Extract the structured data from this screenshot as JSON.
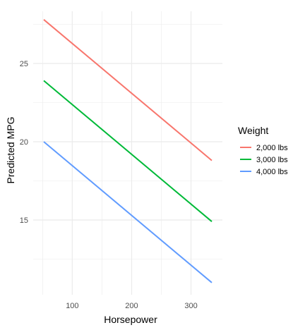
{
  "chart_data": {
    "type": "line",
    "title": "",
    "xlabel": "Horsepower",
    "ylabel": "Predicted MPG",
    "xlim": [
      52,
      335
    ],
    "ylim": [
      10.2,
      28.4
    ],
    "x_ticks": [
      100,
      200,
      300
    ],
    "x_tick_labels": [
      "100",
      "200",
      "300"
    ],
    "y_ticks": [
      15,
      20,
      25
    ],
    "y_tick_labels": [
      "15",
      "20",
      "25"
    ],
    "grid": true,
    "legend": {
      "title": "Weight",
      "placement": "right"
    },
    "series": [
      {
        "name": "2,000 lbs",
        "color": "#F8766D",
        "x": [
          52,
          335
        ],
        "y": [
          27.8,
          18.8
        ]
      },
      {
        "name": "3,000 lbs",
        "color": "#00BA38",
        "x": [
          52,
          335
        ],
        "y": [
          23.9,
          14.9
        ]
      },
      {
        "name": "4,000 lbs",
        "color": "#619CFF",
        "x": [
          52,
          335
        ],
        "y": [
          20.0,
          11.0
        ]
      }
    ]
  }
}
